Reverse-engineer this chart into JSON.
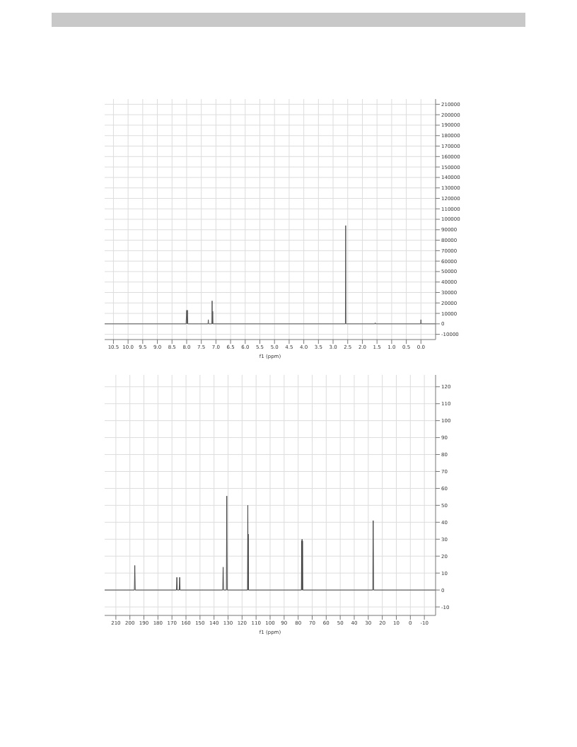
{
  "chart_data": [
    {
      "type": "line",
      "xlabel": "f1 (ppm)",
      "grid": true,
      "marker": "none",
      "line_style": "solid",
      "legend": false,
      "xlim": [
        10.8,
        -0.5
      ],
      "xticks": [
        {
          "value": 10.5,
          "label": "10.5"
        },
        {
          "value": 10,
          "label": "10.0"
        },
        {
          "value": 9.5,
          "label": "9.5"
        },
        {
          "value": 9,
          "label": "9.0"
        },
        {
          "value": 8.5,
          "label": "8.5"
        },
        {
          "value": 8,
          "label": "8.0"
        },
        {
          "value": 7.5,
          "label": "7.5"
        },
        {
          "value": 7,
          "label": "7.0"
        },
        {
          "value": 6.5,
          "label": "6.5"
        },
        {
          "value": 6,
          "label": "6.0"
        },
        {
          "value": 5.5,
          "label": "5.5"
        },
        {
          "value": 5,
          "label": "5.0"
        },
        {
          "value": 4.5,
          "label": "4.5"
        },
        {
          "value": 4,
          "label": "4.0"
        },
        {
          "value": 3.5,
          "label": "3.5"
        },
        {
          "value": 3,
          "label": "3.0"
        },
        {
          "value": 2.5,
          "label": "2.5"
        },
        {
          "value": 2,
          "label": "2.0"
        },
        {
          "value": 1.5,
          "label": "1.5"
        },
        {
          "value": 1,
          "label": "1.0"
        },
        {
          "value": 0.5,
          "label": "0.5"
        },
        {
          "value": 0,
          "label": "0.0"
        }
      ],
      "ylim": [
        -15000,
        215000
      ],
      "yticks": [
        -10000,
        0,
        10000,
        20000,
        30000,
        40000,
        50000,
        60000,
        70000,
        80000,
        90000,
        100000,
        110000,
        120000,
        130000,
        140000,
        150000,
        160000,
        170000,
        180000,
        190000,
        200000,
        210000
      ],
      "series": [
        {
          "color": "#555555",
          "x": [
            10.8,
            8.02,
            8.0,
            7.99,
            7.97,
            7.96,
            7.27,
            7.26,
            7.25,
            7.14,
            7.13,
            7.12,
            7.11,
            7.1,
            2.58,
            2.57,
            2.56,
            1.57,
            1.56,
            1.55,
            0.01,
            0.0,
            -0.01,
            -0.5
          ],
          "values": [
            0,
            0,
            13000,
            0,
            13000,
            0,
            0,
            4000,
            0,
            0,
            22000,
            0,
            12000,
            0,
            0,
            94000,
            0,
            0,
            1000,
            0,
            0,
            4000,
            0,
            0
          ]
        }
      ]
    },
    {
      "type": "line",
      "xlabel": "f1 (ppm)",
      "grid": true,
      "marker": "none",
      "line_style": "solid",
      "legend": false,
      "xlim": [
        218,
        -18
      ],
      "xticks": [
        210,
        200,
        190,
        180,
        170,
        160,
        150,
        140,
        130,
        120,
        110,
        100,
        90,
        80,
        70,
        60,
        50,
        40,
        30,
        20,
        10,
        0,
        -10
      ],
      "ylim": [
        -15,
        127
      ],
      "yticks": [
        -10,
        0,
        10,
        20,
        30,
        40,
        50,
        60,
        70,
        80,
        90,
        100,
        110,
        120
      ],
      "series": [
        {
          "color": "#444444",
          "x": [
            218,
            196.8,
            196.5,
            196.2,
            166.8,
            166.5,
            166.2,
            164.8,
            164.5,
            164.2,
            133.8,
            133.5,
            133.2,
            131.2,
            130.9,
            130.6,
            116.1,
            115.9,
            115.7,
            115.6,
            115.4,
            77.7,
            77.5,
            77.3,
            77.2,
            77.0,
            76.9,
            76.7,
            26.8,
            26.5,
            26.2,
            -18
          ],
          "values": [
            0,
            0,
            14.5,
            0,
            0,
            7.5,
            0,
            0,
            7.5,
            0,
            0,
            13.5,
            0,
            0,
            55.5,
            0,
            0,
            50,
            0,
            33,
            0,
            0,
            29,
            0,
            30,
            0,
            29,
            0,
            0,
            41,
            0,
            0
          ]
        }
      ]
    }
  ]
}
